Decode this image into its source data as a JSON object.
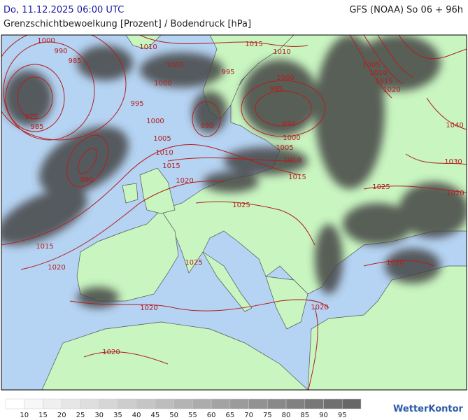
{
  "header": {
    "datetime": "Do, 11.12.2025 06:00 UTC",
    "model": "GFS (NOAA) So 06 + 96h",
    "subtitle": "Grenzschichtbewoelkung [Prozent] / Bodendruck [hPa]"
  },
  "isobar_labels": [
    1000,
    990,
    985,
    1010,
    1015,
    1010,
    1005,
    995,
    1000,
    1000,
    995,
    995,
    975,
    985,
    1000,
    990,
    990,
    1005,
    1000,
    1005,
    1010,
    1010,
    1015,
    1015,
    990,
    1020,
    1025,
    1025,
    1015,
    1020,
    1025,
    1020,
    1020,
    1020,
    1020,
    1005,
    1010,
    1015,
    1020,
    1040,
    1030,
    1020
  ],
  "legend": {
    "ticks": [
      10,
      15,
      20,
      25,
      30,
      35,
      40,
      45,
      50,
      55,
      60,
      65,
      70,
      75,
      80,
      85,
      90,
      95
    ],
    "colors": [
      "#ffffff",
      "#f7f7f7",
      "#efefef",
      "#e6e6e6",
      "#dedede",
      "#d6d6d6",
      "#cdcdcd",
      "#c5c5c5",
      "#bdbdbd",
      "#b4b4b4",
      "#acacac",
      "#a3a3a3",
      "#9b9b9b",
      "#929292",
      "#898989",
      "#818181",
      "#787878",
      "#707070",
      "#676767"
    ]
  },
  "logo": "WetterKontor"
}
